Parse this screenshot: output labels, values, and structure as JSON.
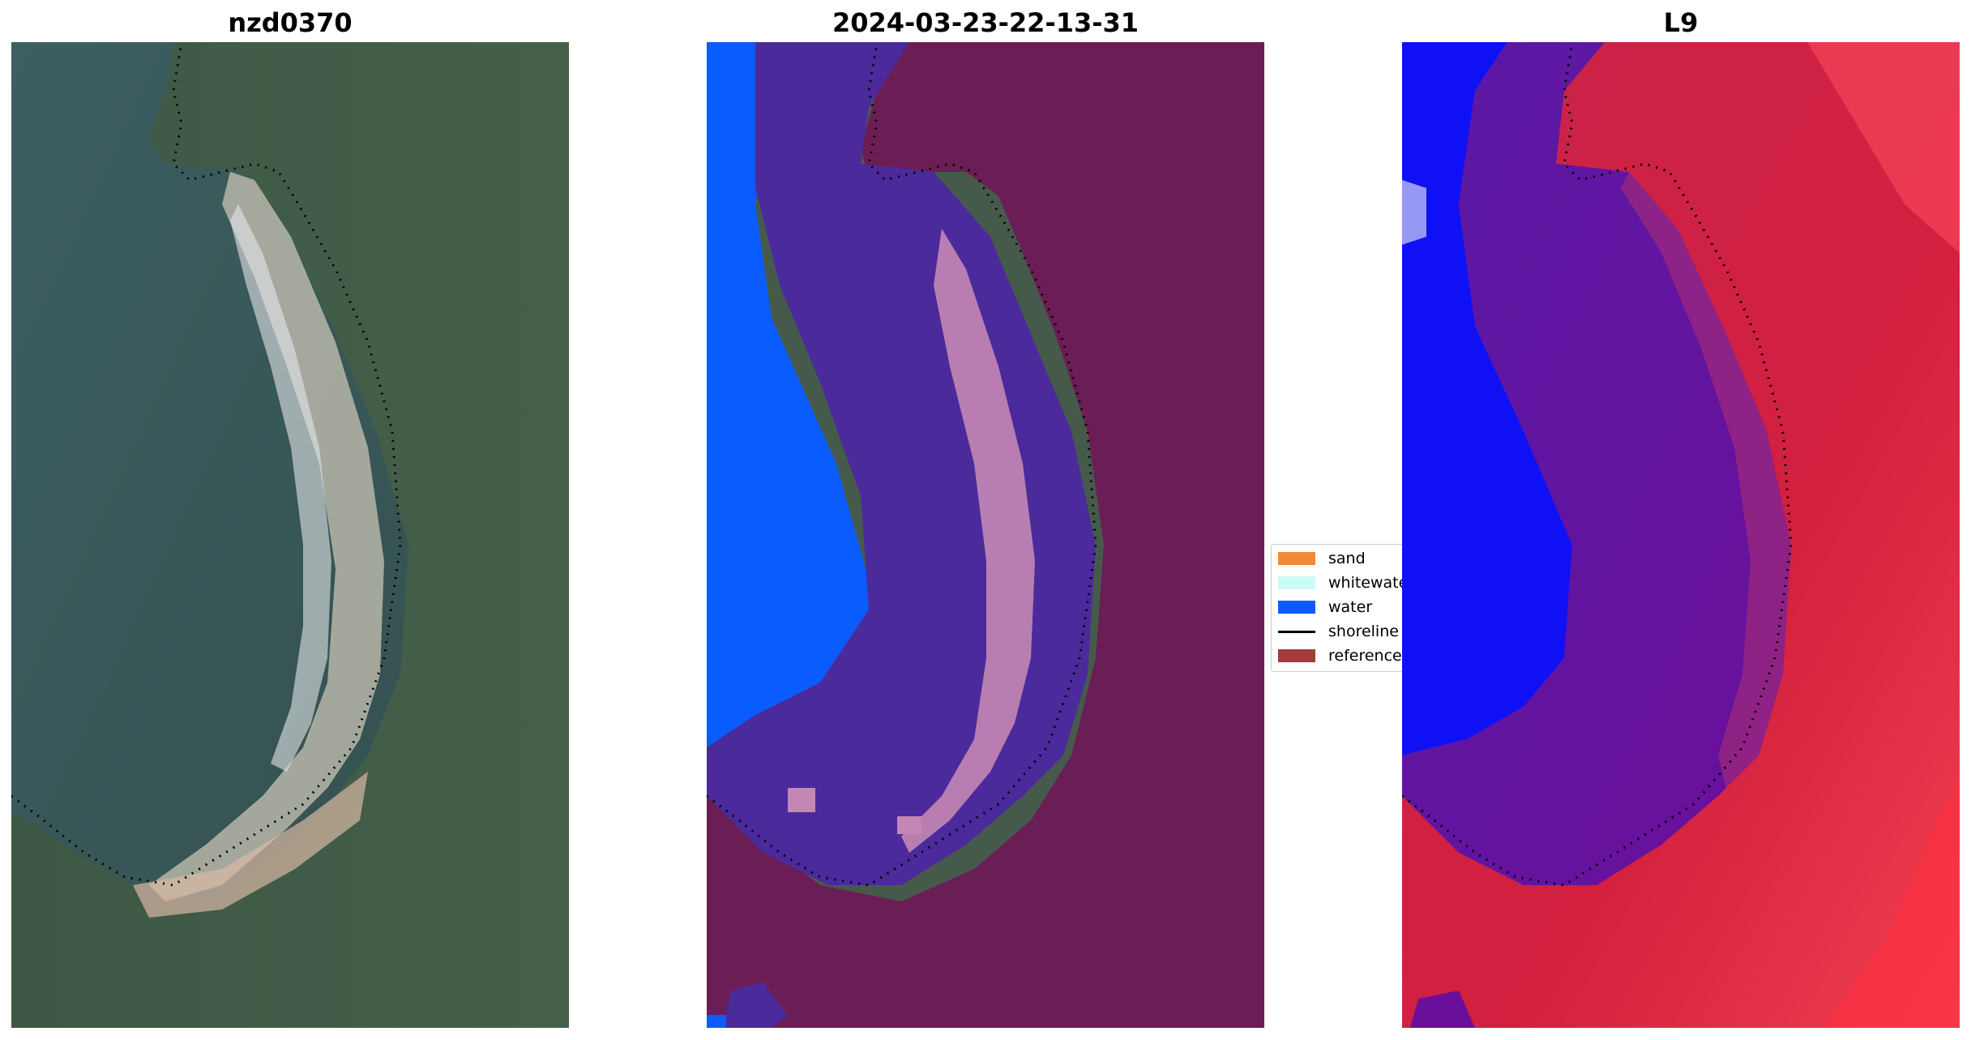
{
  "titles": {
    "left": "nzd0370",
    "middle": "2024-03-23-22-13-31",
    "right": "L9"
  },
  "legend": {
    "items": [
      {
        "label": "sand",
        "color": "#f28a3a",
        "kind": "patch"
      },
      {
        "label": "whitewater",
        "color": "#c9fbf7",
        "kind": "patch"
      },
      {
        "label": "water",
        "color": "#0a5cff",
        "kind": "patch"
      },
      {
        "label": "shoreline",
        "color": "#000000",
        "kind": "line"
      },
      {
        "label": "reference",
        "color": "#a33b3b",
        "kind": "patch"
      }
    ]
  },
  "colors": {
    "sea": "#3c5a5c",
    "land": "#3f5a42",
    "beach": "#c9c2b0",
    "overlay_water": "#0a5cff",
    "overlay_buffer": "#6a1f57",
    "overlay_inner": "#4a2a9a",
    "overlay_whitewater": "#c487b4",
    "index_low": "#1010f5",
    "index_high": "#f01535",
    "index_mid": "#5b0fa0"
  }
}
